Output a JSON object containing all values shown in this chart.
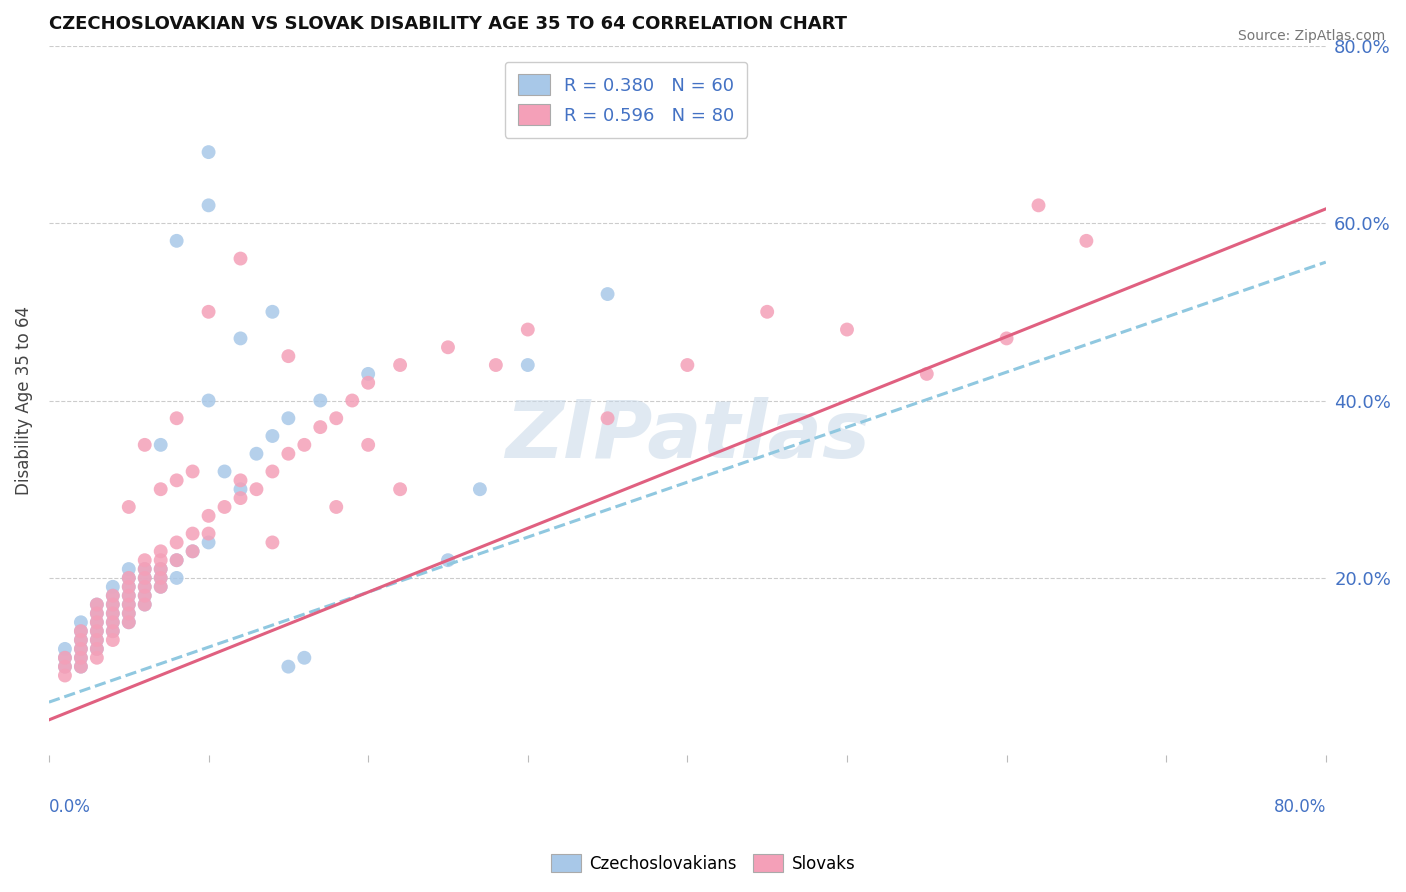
{
  "title": "CZECHOSLOVAKIAN VS SLOVAK DISABILITY AGE 35 TO 64 CORRELATION CHART",
  "source": "Source: ZipAtlas.com",
  "ylabel": "Disability Age 35 to 64",
  "ytick_labels": [
    "20.0%",
    "40.0%",
    "60.0%",
    "80.0%"
  ],
  "ytick_values": [
    0.2,
    0.4,
    0.6,
    0.8
  ],
  "xlim": [
    0.0,
    0.8
  ],
  "ylim": [
    0.0,
    0.8
  ],
  "color_czech": "#a8c8e8",
  "color_slovak": "#f4a0b8",
  "trendline_czech_color": "#90c8e0",
  "trendline_slovak_color": "#e06080",
  "watermark_text": "ZIPatlas",
  "czech_m": 0.62,
  "czech_b": 0.06,
  "slovak_m": 0.72,
  "slovak_b": 0.04,
  "czech_scatter": [
    [
      0.01,
      0.1
    ],
    [
      0.01,
      0.11
    ],
    [
      0.01,
      0.12
    ],
    [
      0.02,
      0.1
    ],
    [
      0.02,
      0.11
    ],
    [
      0.02,
      0.12
    ],
    [
      0.02,
      0.13
    ],
    [
      0.02,
      0.14
    ],
    [
      0.02,
      0.15
    ],
    [
      0.03,
      0.12
    ],
    [
      0.03,
      0.13
    ],
    [
      0.03,
      0.14
    ],
    [
      0.03,
      0.15
    ],
    [
      0.03,
      0.16
    ],
    [
      0.03,
      0.17
    ],
    [
      0.04,
      0.14
    ],
    [
      0.04,
      0.15
    ],
    [
      0.04,
      0.16
    ],
    [
      0.04,
      0.17
    ],
    [
      0.04,
      0.18
    ],
    [
      0.04,
      0.19
    ],
    [
      0.05,
      0.15
    ],
    [
      0.05,
      0.16
    ],
    [
      0.05,
      0.17
    ],
    [
      0.05,
      0.18
    ],
    [
      0.05,
      0.19
    ],
    [
      0.05,
      0.2
    ],
    [
      0.05,
      0.21
    ],
    [
      0.06,
      0.17
    ],
    [
      0.06,
      0.18
    ],
    [
      0.06,
      0.19
    ],
    [
      0.06,
      0.2
    ],
    [
      0.06,
      0.21
    ],
    [
      0.07,
      0.19
    ],
    [
      0.07,
      0.2
    ],
    [
      0.07,
      0.21
    ],
    [
      0.07,
      0.35
    ],
    [
      0.08,
      0.2
    ],
    [
      0.08,
      0.22
    ],
    [
      0.09,
      0.23
    ],
    [
      0.1,
      0.24
    ],
    [
      0.1,
      0.4
    ],
    [
      0.11,
      0.32
    ],
    [
      0.12,
      0.3
    ],
    [
      0.13,
      0.34
    ],
    [
      0.14,
      0.36
    ],
    [
      0.15,
      0.38
    ],
    [
      0.17,
      0.4
    ],
    [
      0.25,
      0.22
    ],
    [
      0.27,
      0.3
    ],
    [
      0.08,
      0.58
    ],
    [
      0.1,
      0.62
    ],
    [
      0.1,
      0.68
    ],
    [
      0.15,
      0.1
    ],
    [
      0.16,
      0.11
    ],
    [
      0.12,
      0.47
    ],
    [
      0.14,
      0.5
    ],
    [
      0.3,
      0.44
    ],
    [
      0.2,
      0.43
    ],
    [
      0.35,
      0.52
    ]
  ],
  "slovak_scatter": [
    [
      0.01,
      0.09
    ],
    [
      0.01,
      0.1
    ],
    [
      0.01,
      0.11
    ],
    [
      0.02,
      0.1
    ],
    [
      0.02,
      0.11
    ],
    [
      0.02,
      0.12
    ],
    [
      0.02,
      0.13
    ],
    [
      0.02,
      0.14
    ],
    [
      0.03,
      0.11
    ],
    [
      0.03,
      0.12
    ],
    [
      0.03,
      0.13
    ],
    [
      0.03,
      0.14
    ],
    [
      0.03,
      0.15
    ],
    [
      0.03,
      0.16
    ],
    [
      0.03,
      0.17
    ],
    [
      0.04,
      0.13
    ],
    [
      0.04,
      0.14
    ],
    [
      0.04,
      0.15
    ],
    [
      0.04,
      0.16
    ],
    [
      0.04,
      0.17
    ],
    [
      0.04,
      0.18
    ],
    [
      0.05,
      0.15
    ],
    [
      0.05,
      0.16
    ],
    [
      0.05,
      0.17
    ],
    [
      0.05,
      0.18
    ],
    [
      0.05,
      0.19
    ],
    [
      0.05,
      0.2
    ],
    [
      0.06,
      0.17
    ],
    [
      0.06,
      0.18
    ],
    [
      0.06,
      0.19
    ],
    [
      0.06,
      0.2
    ],
    [
      0.06,
      0.21
    ],
    [
      0.06,
      0.22
    ],
    [
      0.07,
      0.19
    ],
    [
      0.07,
      0.2
    ],
    [
      0.07,
      0.21
    ],
    [
      0.07,
      0.22
    ],
    [
      0.07,
      0.23
    ],
    [
      0.07,
      0.3
    ],
    [
      0.08,
      0.22
    ],
    [
      0.08,
      0.24
    ],
    [
      0.08,
      0.31
    ],
    [
      0.09,
      0.23
    ],
    [
      0.09,
      0.25
    ],
    [
      0.1,
      0.25
    ],
    [
      0.1,
      0.27
    ],
    [
      0.11,
      0.28
    ],
    [
      0.12,
      0.29
    ],
    [
      0.12,
      0.31
    ],
    [
      0.13,
      0.3
    ],
    [
      0.14,
      0.32
    ],
    [
      0.15,
      0.34
    ],
    [
      0.15,
      0.45
    ],
    [
      0.16,
      0.35
    ],
    [
      0.17,
      0.37
    ],
    [
      0.18,
      0.38
    ],
    [
      0.19,
      0.4
    ],
    [
      0.2,
      0.42
    ],
    [
      0.22,
      0.44
    ],
    [
      0.25,
      0.46
    ],
    [
      0.1,
      0.5
    ],
    [
      0.12,
      0.56
    ],
    [
      0.08,
      0.38
    ],
    [
      0.09,
      0.32
    ],
    [
      0.06,
      0.35
    ],
    [
      0.14,
      0.24
    ],
    [
      0.6,
      0.47
    ],
    [
      0.2,
      0.35
    ],
    [
      0.28,
      0.44
    ],
    [
      0.35,
      0.38
    ],
    [
      0.4,
      0.44
    ],
    [
      0.45,
      0.5
    ],
    [
      0.55,
      0.43
    ],
    [
      0.65,
      0.58
    ],
    [
      0.18,
      0.28
    ],
    [
      0.22,
      0.3
    ],
    [
      0.3,
      0.48
    ],
    [
      0.5,
      0.48
    ],
    [
      0.62,
      0.62
    ],
    [
      0.05,
      0.28
    ]
  ]
}
